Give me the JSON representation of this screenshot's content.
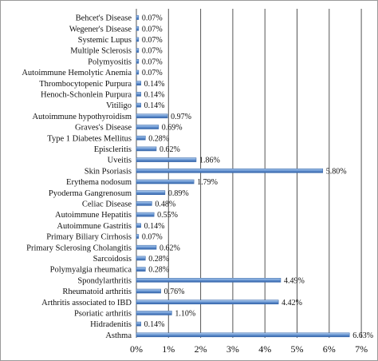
{
  "colors": {
    "bar_light": "#b9d1ee",
    "bar_mid": "#6e9bd6",
    "bar_dark": "#2f5fa6",
    "grid": "#555555"
  },
  "chart_data": {
    "type": "bar",
    "orientation": "horizontal",
    "title": "",
    "xlabel": "",
    "ylabel": "",
    "xlim": [
      0,
      7
    ],
    "x_tick_labels": [
      "0%",
      "1%",
      "2%",
      "3%",
      "4%",
      "5%",
      "6%",
      "7%"
    ],
    "grid": "vertical",
    "legend": "none",
    "categories": [
      "Behcet's Disease",
      "Wegener's Disease",
      "Systemic Lupus",
      "Multiple Sclerosis",
      "Polymyositis",
      "Autoimmune Hemolytic Anemia",
      "Thrombocytopenic Purpura",
      "Henoch-Schonlein Purpura",
      "Vitiligo",
      "Autoimmune hypothyroidism",
      "Graves's Disease",
      "Type 1 Diabetes Mellitus",
      "Episcleritis",
      "Uveitis",
      "Skin Psoriasis",
      "Erythema nodosum",
      "Pyoderma Gangrenosum",
      "Celiac Disease",
      "Autoimmune Hepatitis",
      "Autoimmune Gastritis",
      "Primary Biliary Cirrhosis",
      "Primary Sclerosing Cholangitis",
      "Sarcoidosis",
      "Polymyalgia rheumatica",
      "Spondylarthritis",
      "Rheumatoid arthritis",
      "Arthritis associated to IBD",
      "Psoriatic arthritis",
      "Hidradenitis",
      "Asthma"
    ],
    "values": [
      0.07,
      0.07,
      0.07,
      0.07,
      0.07,
      0.07,
      0.14,
      0.14,
      0.14,
      0.97,
      0.69,
      0.28,
      0.62,
      1.86,
      5.8,
      1.79,
      0.89,
      0.48,
      0.55,
      0.14,
      0.07,
      0.62,
      0.28,
      0.28,
      4.49,
      0.76,
      4.42,
      1.1,
      0.14,
      6.63
    ],
    "value_labels": [
      "0.07%",
      "0.07%",
      "0.07%",
      "0.07%",
      "0.07%",
      "0.07%",
      "0.14%",
      "0.14%",
      "0.14%",
      "0.97%",
      "0.69%",
      "0.28%",
      "0.62%",
      "1.86%",
      "5.80%",
      "1.79%",
      "0.89%",
      "0.48%",
      "0.55%",
      "0.14%",
      "0.07%",
      "0.62%",
      "0.28%",
      "0.28%",
      "4.49%",
      "0.76%",
      "4.42%",
      "1.10%",
      "0.14%",
      "6.63%"
    ]
  }
}
